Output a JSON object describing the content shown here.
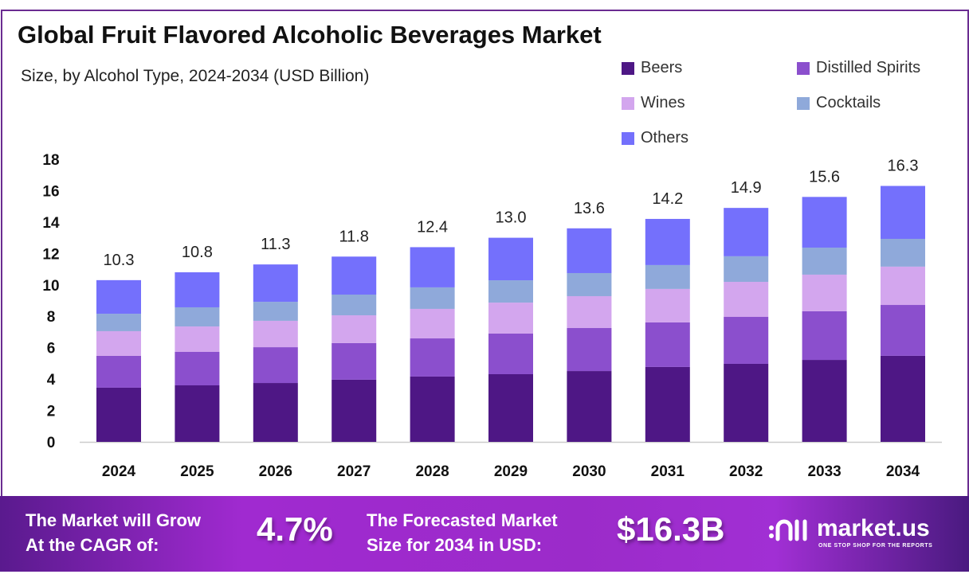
{
  "chart_data": {
    "type": "bar",
    "stacked": true,
    "title": "Global Fruit Flavored Alcoholic Beverages Market",
    "subtitle": "Size, by  Alcohol Type, 2024-2034 (USD Billion)",
    "categories": [
      "2024",
      "2025",
      "2026",
      "2027",
      "2028",
      "2029",
      "2030",
      "2031",
      "2032",
      "2033",
      "2034"
    ],
    "series": [
      {
        "name": "Beers",
        "color": "#4e1785",
        "values": [
          3.45,
          3.6,
          3.75,
          3.96,
          4.16,
          4.31,
          4.51,
          4.77,
          4.97,
          5.22,
          5.48
        ]
      },
      {
        "name": "Distilled Spirits",
        "color": "#8b4fcd",
        "values": [
          2.03,
          2.13,
          2.28,
          2.33,
          2.43,
          2.59,
          2.74,
          2.84,
          2.99,
          3.1,
          3.24
        ]
      },
      {
        "name": "Wines",
        "color": "#d3a6ee",
        "values": [
          1.57,
          1.62,
          1.68,
          1.77,
          1.88,
          1.97,
          2.03,
          2.13,
          2.23,
          2.33,
          2.44
        ]
      },
      {
        "name": "Cocktails",
        "color": "#8fa9da",
        "values": [
          1.11,
          1.22,
          1.21,
          1.32,
          1.37,
          1.42,
          1.47,
          1.52,
          1.63,
          1.72,
          1.77
        ]
      },
      {
        "name": "Others",
        "color": "#7470fc",
        "values": [
          2.14,
          2.23,
          2.38,
          2.42,
          2.56,
          2.71,
          2.85,
          2.94,
          3.08,
          3.23,
          3.37
        ]
      }
    ],
    "totals": [
      "10.3",
      "10.8",
      "11.3",
      "11.8",
      "12.4",
      "13.0",
      "13.6",
      "14.2",
      "14.9",
      "15.6",
      "16.3"
    ],
    "yticks": [
      "0",
      "2",
      "4",
      "6",
      "8",
      "10",
      "12",
      "14",
      "16",
      "18"
    ],
    "ylim": [
      0,
      18
    ],
    "grid": false,
    "legend": "top-right"
  },
  "footer": {
    "cagr_label_1": "The Market will Grow",
    "cagr_label_2": "At the CAGR of:",
    "cagr_value": "4.7%",
    "forecast_label_1": "The Forecasted Market",
    "forecast_label_2": "Size for 2034 in USD:",
    "forecast_value": "$16.3B",
    "brand": "market.us",
    "tagline": "ONE STOP SHOP FOR THE REPORTS"
  }
}
